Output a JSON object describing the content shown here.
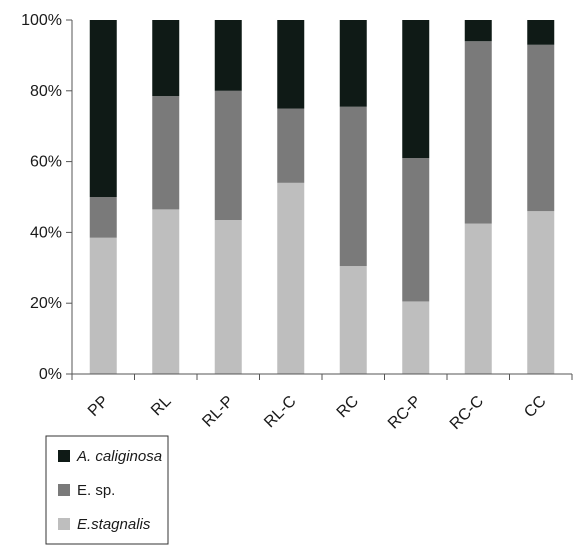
{
  "chart_data": {
    "type": "bar",
    "stacked": true,
    "percent": true,
    "categories": [
      "PP",
      "RL",
      "RL-P",
      "RL-C",
      "RC",
      "RC-P",
      "RC-C",
      "CC"
    ],
    "series": [
      {
        "name": "E.stagnalis",
        "italic": true,
        "color": "#bebebe",
        "values": [
          38.5,
          46.5,
          43.5,
          54,
          30.5,
          20.5,
          42.5,
          46
        ]
      },
      {
        "name": "E. sp.",
        "italic": false,
        "color": "#7a7a7a",
        "values": [
          11.5,
          32,
          36.5,
          21,
          45,
          40.5,
          51.5,
          47
        ]
      },
      {
        "name": "A. caliginosa",
        "italic": true,
        "color": "#0f1a16",
        "values": [
          50,
          21.5,
          20,
          25,
          24.5,
          39,
          6,
          7
        ]
      }
    ],
    "y_ticks": [
      "0%",
      "20%",
      "40%",
      "60%",
      "80%",
      "100%"
    ],
    "ylim": [
      0,
      100
    ],
    "legend_placement": "bottom-left",
    "legend_order": [
      "A. caliginosa",
      "E. sp.",
      "E.stagnalis"
    ],
    "grid": false
  }
}
